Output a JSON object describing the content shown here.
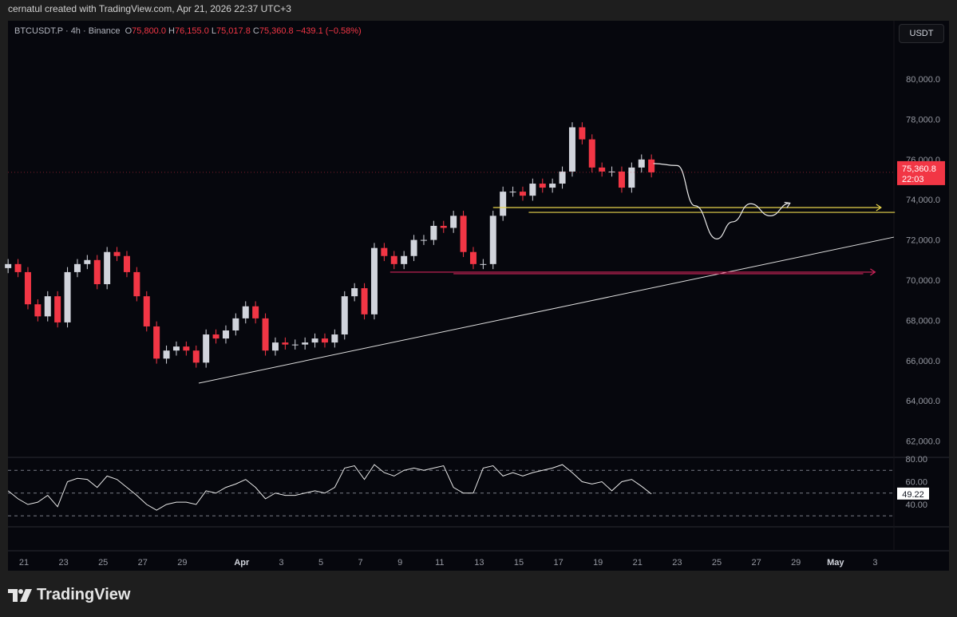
{
  "credit": "cernatul created with TradingView.com, Apr 21, 2026 22:37 UTC+3",
  "legend": {
    "symbol": "BTCUSDT.P · 4h · Binance",
    "o_label": "O",
    "o": "75,800.0",
    "h_label": "H",
    "h": "76,155.0",
    "l_label": "L",
    "l": "75,017.8",
    "c_label": "C",
    "c": "75,360.8",
    "change": "−439.1 (−0.58%)"
  },
  "currency": "USDT",
  "last_price": {
    "value": "75,360.8",
    "countdown": "22:03"
  },
  "rsi_value": "49.22",
  "logo_text": "TradingView",
  "colors": {
    "up": "#d1d4dc",
    "down": "#f23645",
    "bg": "#06070d",
    "support": "#e8d44d",
    "demand": "#d0245a",
    "trend": "#e0e0e0"
  },
  "chart_data": {
    "type": "candlestick",
    "title": "BTCUSDT.P 4h Binance",
    "candle_interval_days": 0.5,
    "first_candle_day": -0.8,
    "day_origin": "Mar 21",
    "closes": [
      70800,
      70400,
      68800,
      68200,
      69200,
      67900,
      70400,
      70800,
      71000,
      69800,
      71400,
      71200,
      70400,
      69200,
      67700,
      66100,
      66500,
      66700,
      66500,
      65900,
      67300,
      67100,
      67500,
      68100,
      68700,
      68100,
      66500,
      66900,
      66800,
      66800,
      66900,
      67100,
      66900,
      67300,
      69200,
      69600,
      68300,
      71600,
      71200,
      70800,
      71200,
      72000,
      72000,
      72700,
      72600,
      73200,
      71400,
      70800,
      70800,
      73200,
      74400,
      74400,
      74200,
      74800,
      74600,
      74800,
      75400,
      77600,
      77000,
      75600,
      75400,
      75400,
      74600,
      75600,
      76000,
      75360.8
    ],
    "first_open": 70600,
    "wick": 250,
    "ylim": [
      61500,
      81000
    ],
    "y_ticks": [
      {
        "v": 80000,
        "label": "80,000.0"
      },
      {
        "v": 78000,
        "label": "78,000.0"
      },
      {
        "v": 76000,
        "label": "76,000.0"
      },
      {
        "v": 74000,
        "label": "74,000.0"
      },
      {
        "v": 72000,
        "label": "72,000.0"
      },
      {
        "v": 70000,
        "label": "70,000.0"
      },
      {
        "v": 68000,
        "label": "68,000.0"
      },
      {
        "v": 66000,
        "label": "66,000.0"
      },
      {
        "v": 64000,
        "label": "64,000.0"
      },
      {
        "v": 62000,
        "label": "62,000.0"
      }
    ],
    "x_ticks": [
      {
        "d": 0,
        "label": "21"
      },
      {
        "d": 2,
        "label": "23"
      },
      {
        "d": 4,
        "label": "25"
      },
      {
        "d": 6,
        "label": "27"
      },
      {
        "d": 8,
        "label": "29"
      },
      {
        "d": 11,
        "label": "Apr",
        "bold": true
      },
      {
        "d": 13,
        "label": "3"
      },
      {
        "d": 15,
        "label": "5"
      },
      {
        "d": 17,
        "label": "7"
      },
      {
        "d": 19,
        "label": "9"
      },
      {
        "d": 21,
        "label": "11"
      },
      {
        "d": 23,
        "label": "13"
      },
      {
        "d": 25,
        "label": "15"
      },
      {
        "d": 27,
        "label": "17"
      },
      {
        "d": 29,
        "label": "19"
      },
      {
        "d": 31,
        "label": "21"
      },
      {
        "d": 33,
        "label": "23"
      },
      {
        "d": 35,
        "label": "25"
      },
      {
        "d": 37,
        "label": "27"
      },
      {
        "d": 39,
        "label": "29"
      },
      {
        "d": 41,
        "label": "May",
        "bold": true
      },
      {
        "d": 43,
        "label": "3"
      }
    ],
    "rsi": {
      "values": [
        52,
        45,
        40,
        42,
        48,
        38,
        60,
        63,
        62,
        55,
        65,
        62,
        55,
        48,
        40,
        35,
        40,
        42,
        42,
        40,
        52,
        50,
        55,
        58,
        62,
        55,
        45,
        50,
        48,
        48,
        50,
        52,
        50,
        55,
        72,
        74,
        62,
        75,
        68,
        65,
        70,
        72,
        70,
        72,
        74,
        55,
        50,
        50,
        72,
        74,
        65,
        68,
        65,
        68,
        70,
        72,
        75,
        68,
        60,
        58,
        60,
        52,
        60,
        62,
        56,
        49.22
      ],
      "ticks": [
        {
          "v": 80,
          "label": "80.00"
        },
        {
          "v": 60,
          "label": "60.00"
        },
        {
          "v": 40,
          "label": "40.00"
        }
      ],
      "bands": [
        70,
        50,
        30
      ]
    },
    "drawings": {
      "trendline": [
        [
          8.83,
          64880
        ],
        [
          43.95,
          72140
        ]
      ],
      "yellow_lines": [
        {
          "from": 23.7,
          "to": 43.3,
          "price": 73610,
          "arrow": true
        },
        {
          "from": 25.5,
          "to": 44.0,
          "price": 73370,
          "arrow": false
        }
      ],
      "red_lines": [
        {
          "from": 18.5,
          "to": 43.0,
          "price": 70400,
          "arrow": true
        },
        {
          "from": 21.7,
          "to": 42.4,
          "price": 70320,
          "arrow": false
        }
      ],
      "projection": [
        [
          31.8,
          75800
        ],
        [
          33.0,
          75700
        ],
        [
          33.9,
          73700
        ],
        [
          35.0,
          72050
        ],
        [
          35.8,
          72900
        ],
        [
          36.7,
          73800
        ],
        [
          37.7,
          73200
        ],
        [
          38.7,
          73830
        ]
      ]
    }
  }
}
